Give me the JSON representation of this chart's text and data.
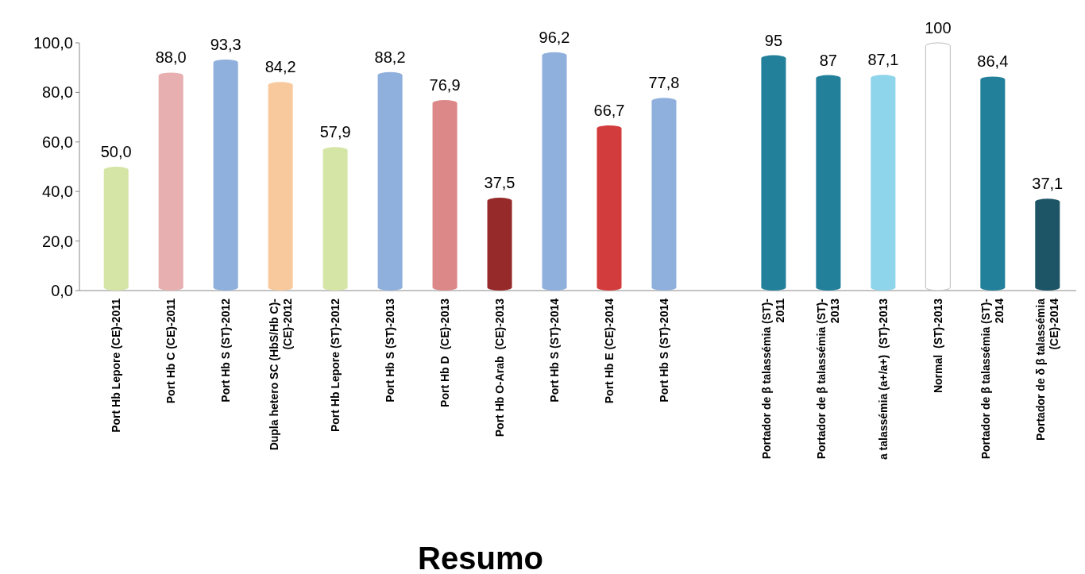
{
  "chart_data": {
    "type": "bar",
    "title": "Resumo",
    "categories": [
      "Port Hb Lepore (CE)-2011",
      "Port Hb C (CE)-2011",
      "Port Hb S (ST)-2012",
      "Dupla hetero SC (HbS/Hb C)-(CE)-2012",
      "Port Hb Lepore (ST)-2012",
      "Port Hb S (ST)-2013",
      "Port Hb D  (CE)-2013",
      "Port Hb O-Arab  (CE)-2013",
      "Port Hb S (ST)-2014",
      "Port Hb E (CE)-2014",
      "Port Hb S (ST)-2014",
      null,
      "Portador de β talassémia (ST)-2011",
      "Portador de β talassémia (ST)-2013",
      "a talassémia (a+/a+)  (ST)-2013",
      "Normal  (ST)-2013",
      "Portador de β talassémia (ST)-2014",
      "Portador de δ β talassémia (CE)-2014"
    ],
    "values": [
      50.0,
      88.0,
      93.3,
      84.2,
      57.9,
      88.2,
      76.9,
      37.5,
      96.2,
      66.7,
      77.8,
      null,
      95,
      87,
      87.1,
      100,
      86.4,
      37.1
    ],
    "value_labels": [
      "50,0",
      "88,0",
      "93,3",
      "84,2",
      "57,9",
      "88,2",
      "76,9",
      "37,5",
      "96,2",
      "66,7",
      "77,8",
      null,
      "95",
      "87",
      "87,1",
      "100",
      "86,4",
      "37,1"
    ],
    "colors": [
      "#d5e5a6",
      "#e8afb0",
      "#8fb0dc",
      "#f8c99d",
      "#d5e5a6",
      "#8fb0dc",
      "#dc8888",
      "#962a2a",
      "#8fb0dc",
      "#d23c3c",
      "#8fb0dc",
      null,
      "#22809a",
      "#22809a",
      "#8ed4ea",
      "#ffffff",
      "#22809a",
      "#1d5566"
    ],
    "ylim": [
      0,
      100
    ],
    "yticks": [
      {
        "value": 0,
        "label": "0,0"
      },
      {
        "value": 20,
        "label": "20,0"
      },
      {
        "value": 40,
        "label": "40,0"
      },
      {
        "value": 60,
        "label": "60,0"
      },
      {
        "value": 80,
        "label": "80,0"
      },
      {
        "value": 100,
        "label": "100,0"
      }
    ],
    "grid": false
  }
}
